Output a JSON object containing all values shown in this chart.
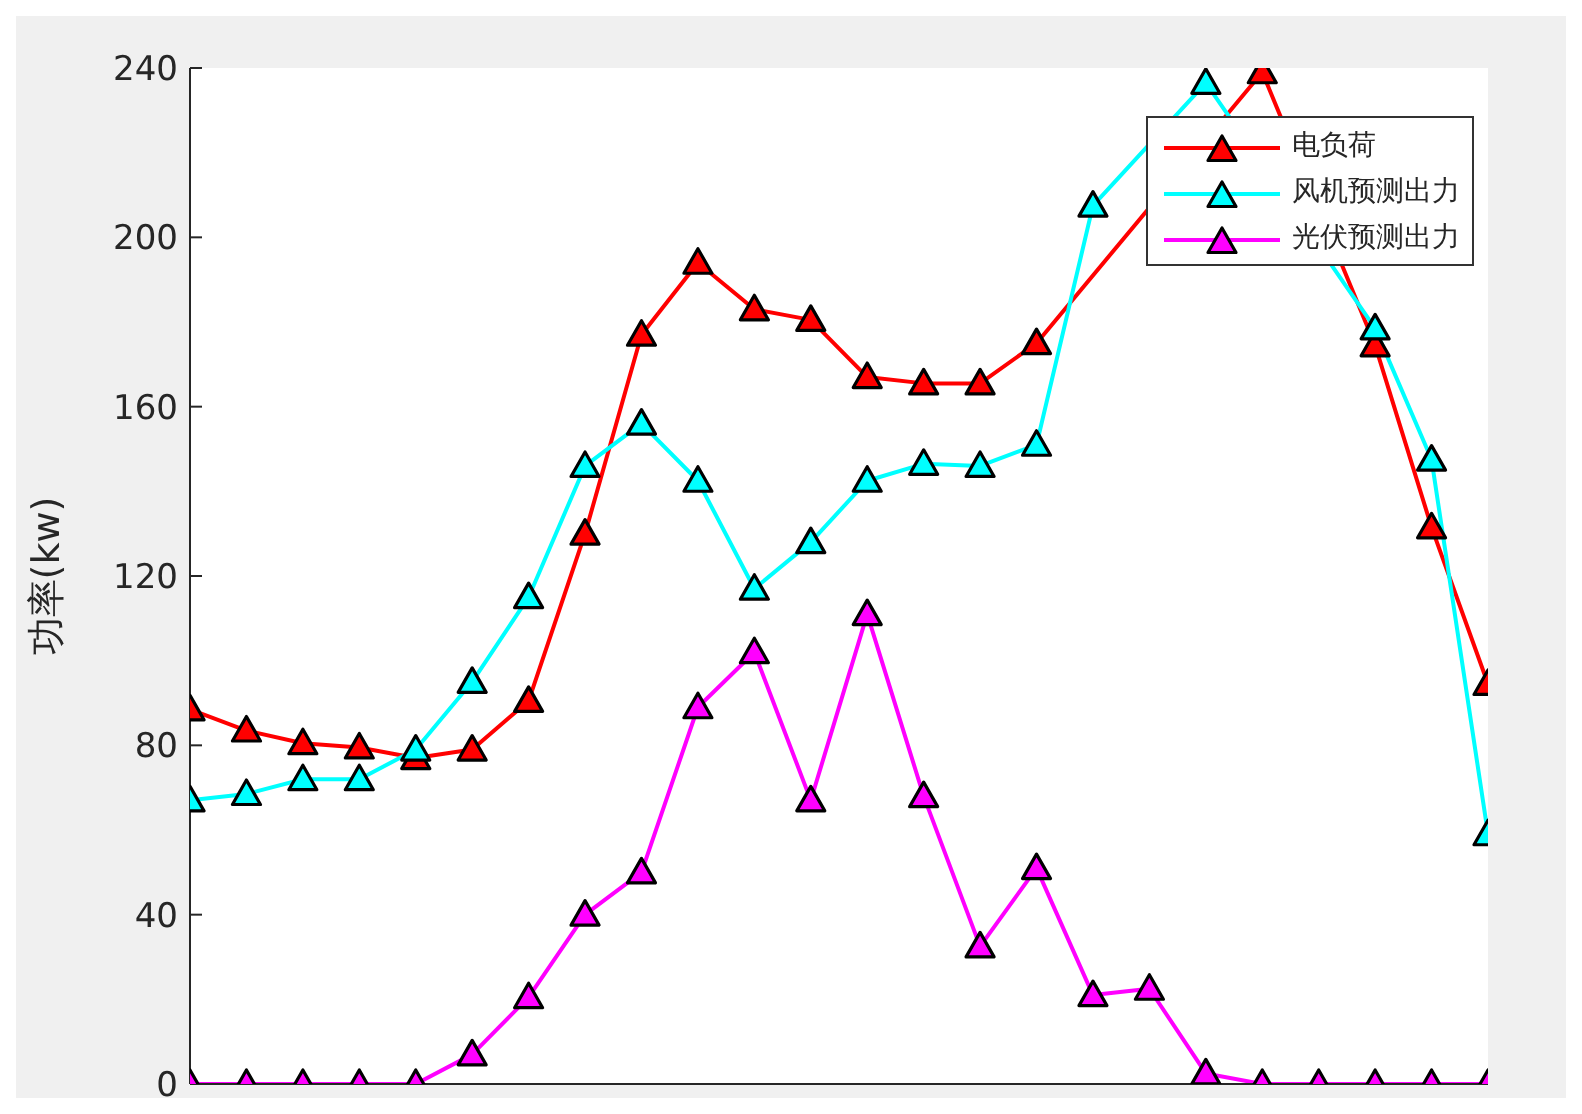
{
  "chart_data": {
    "type": "line",
    "ylabel": "功率(kw)",
    "categories": [
      null,
      null,
      null,
      null,
      null,
      null,
      null,
      null,
      null,
      null,
      null,
      null,
      null,
      null,
      null,
      null,
      null,
      null,
      null,
      null,
      null,
      null,
      null,
      null
    ],
    "series": [
      {
        "name": "电负荷",
        "color": "#ff0000",
        "values": [
          88.5,
          83.5,
          80.5,
          79.5,
          77,
          79,
          90.5,
          130,
          177,
          194,
          183,
          180.5,
          167,
          165.5,
          165.5,
          175,
          null,
          null,
          null,
          239,
          null,
          174.5,
          131.5,
          94.5
        ]
      },
      {
        "name": "风机预测出力",
        "color": "#00ffff",
        "values": [
          67,
          68.5,
          72,
          72,
          79,
          95,
          115,
          146,
          156,
          142.5,
          117,
          128,
          142.5,
          146.5,
          146,
          151,
          207.5,
          null,
          236.5,
          null,
          null,
          178.5,
          147.5,
          59
        ]
      },
      {
        "name": "光伏预测出力",
        "color": "#ff00ff",
        "values": [
          0,
          0,
          0,
          0,
          0,
          7,
          20.5,
          40,
          50,
          89,
          102,
          67,
          111,
          68,
          32.5,
          51,
          21,
          22.5,
          2.5,
          0,
          0,
          0,
          0,
          0
        ]
      }
    ],
    "ylim": [
      0,
      240
    ],
    "yticks": [
      0,
      40,
      80,
      120,
      160,
      200,
      240
    ],
    "tick_labels": "y",
    "grid": false,
    "legend": "top right",
    "marker": "triangle",
    "line_style": "solid"
  }
}
